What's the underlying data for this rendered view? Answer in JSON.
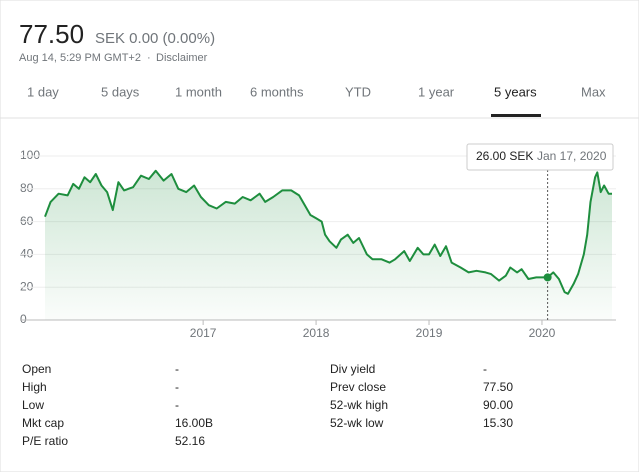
{
  "header": {
    "price": "77.50",
    "change": "SEK 0.00 (0.00%)",
    "timestamp": "Aug 14, 5:29 PM GMT+2",
    "separator": "·",
    "disclaimer": "Disclaimer"
  },
  "tabs": {
    "items": [
      "1 day",
      "5 days",
      "1 month",
      "6 months",
      "YTD",
      "1 year",
      "5 years",
      "Max"
    ],
    "active": 6
  },
  "chart_data": {
    "type": "line",
    "color": "#1e8e3e",
    "x": [
      2015.6,
      2015.65,
      2015.72,
      2015.8,
      2015.85,
      2015.9,
      2015.95,
      2016.0,
      2016.05,
      2016.1,
      2016.15,
      2016.2,
      2016.25,
      2016.3,
      2016.38,
      2016.45,
      2016.52,
      2016.58,
      2016.65,
      2016.72,
      2016.78,
      2016.85,
      2016.92,
      2016.98,
      2017.05,
      2017.12,
      2017.2,
      2017.28,
      2017.35,
      2017.42,
      2017.5,
      2017.55,
      2017.62,
      2017.7,
      2017.78,
      2017.85,
      2017.9,
      2017.95,
      2018.0,
      2018.05,
      2018.08,
      2018.12,
      2018.18,
      2018.22,
      2018.28,
      2018.33,
      2018.38,
      2018.45,
      2018.5,
      2018.58,
      2018.65,
      2018.7,
      2018.78,
      2018.83,
      2018.9,
      2018.95,
      2019.0,
      2019.05,
      2019.1,
      2019.15,
      2019.2,
      2019.28,
      2019.35,
      2019.42,
      2019.5,
      2019.55,
      2019.62,
      2019.68,
      2019.72,
      2019.78,
      2019.82,
      2019.88,
      2019.95,
      2020.0,
      2020.05,
      2020.1,
      2020.15,
      2020.2,
      2020.23,
      2020.28,
      2020.32,
      2020.37,
      2020.4,
      2020.43,
      2020.47,
      2020.49,
      2020.52,
      2020.55,
      2020.59,
      2020.62
    ],
    "values": [
      63,
      72,
      77,
      76,
      83,
      80,
      87,
      84,
      89,
      82,
      78,
      67,
      84,
      79,
      81,
      88,
      86,
      91,
      85,
      89,
      80,
      78,
      82,
      75,
      70,
      68,
      72,
      71,
      75,
      73,
      77,
      72,
      75,
      79,
      79,
      76,
      70,
      64,
      62,
      60,
      52,
      48,
      44,
      49,
      52,
      47,
      50,
      40,
      37,
      37,
      35,
      37,
      42,
      36,
      44,
      40,
      40,
      46,
      39,
      45,
      35,
      32,
      29,
      30,
      29,
      28,
      24,
      27,
      32,
      29,
      31,
      25,
      26,
      26,
      26,
      29,
      25,
      17,
      16,
      22,
      28,
      40,
      52,
      72,
      87,
      90,
      78,
      82,
      77,
      77
    ],
    "xlim": [
      2015.6,
      2020.62
    ],
    "xticks": [
      2017,
      2018,
      2019,
      2020
    ],
    "ylim": [
      0,
      100
    ],
    "yticks": [
      0,
      20,
      40,
      60,
      80,
      100
    ],
    "grid": true,
    "tooltip": {
      "x": 2020.05,
      "value": 26,
      "value_label": "26.00 SEK",
      "date": "Jan 17, 2020"
    }
  },
  "stats": {
    "left": [
      [
        "Open",
        "-"
      ],
      [
        "High",
        "-"
      ],
      [
        "Low",
        "-"
      ],
      [
        "Mkt cap",
        "16.00B"
      ],
      [
        "P/E ratio",
        "52.16"
      ]
    ],
    "right": [
      [
        "Div yield",
        "-"
      ],
      [
        "Prev close",
        "77.50"
      ],
      [
        "52-wk high",
        "90.00"
      ],
      [
        "52-wk low",
        "15.30"
      ]
    ]
  }
}
